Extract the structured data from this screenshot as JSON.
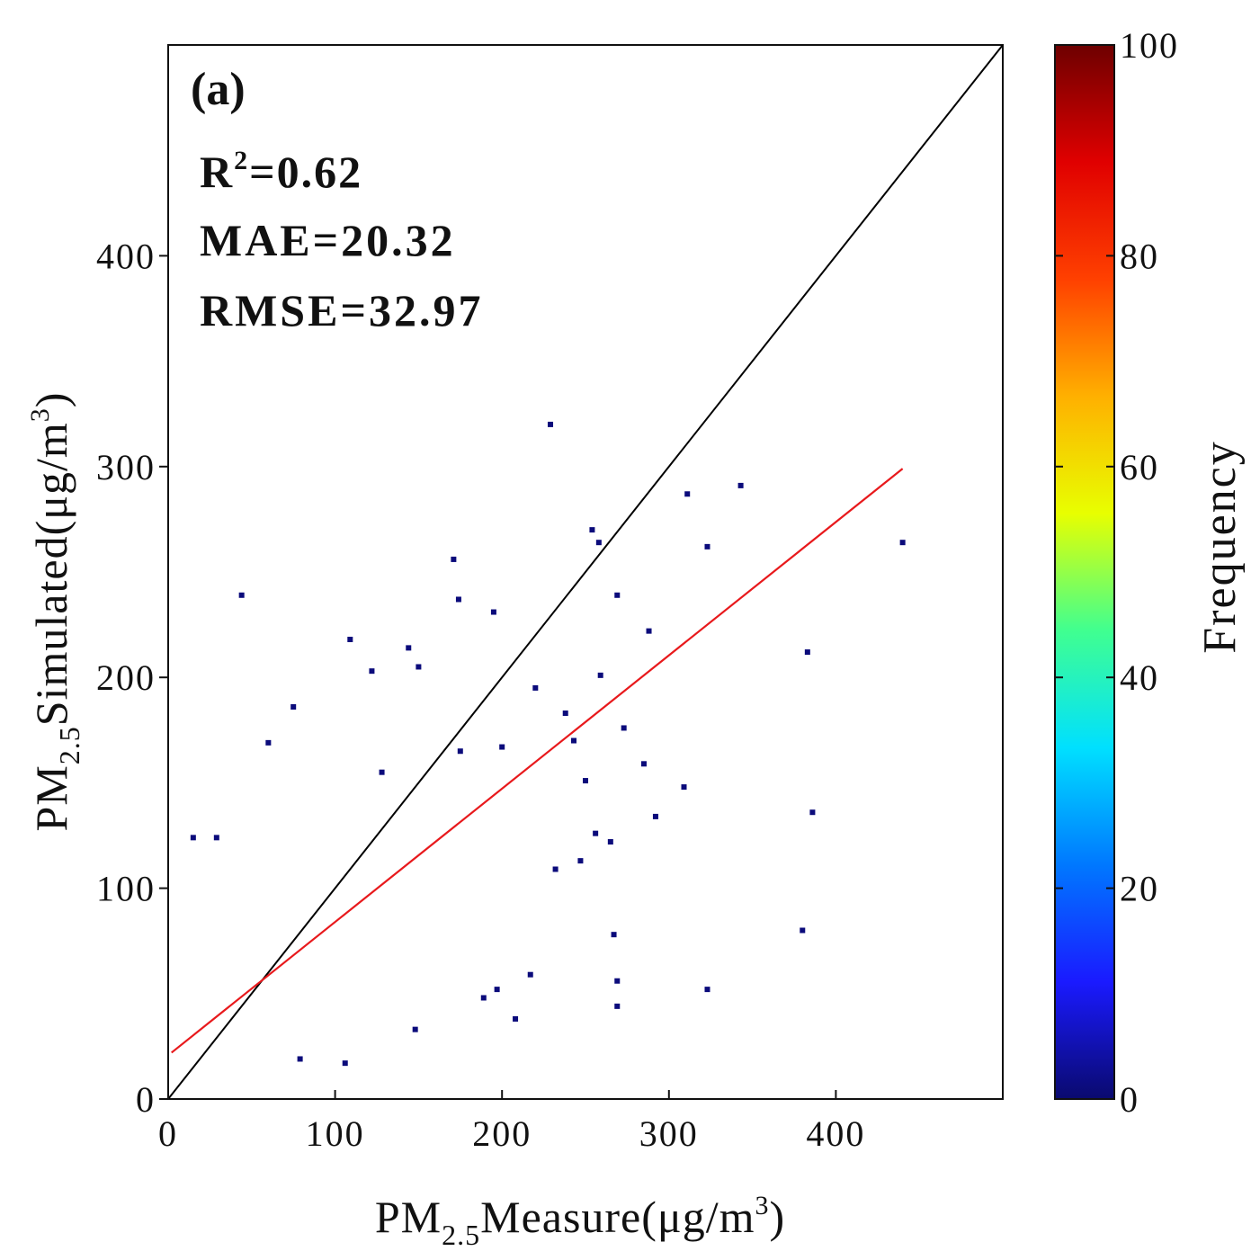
{
  "chart_data": {
    "type": "scatter",
    "subtype": "density-scatter",
    "panel_label": "(a)",
    "stats": {
      "r2_prefix": "R",
      "r2_sup": "2",
      "r2_value": "=0.62",
      "mae": "MAE=20.32",
      "rmse": "RMSE=32.97"
    },
    "xlabel": {
      "main": "PM",
      "sub": "2.5",
      "rest": "Measure(μg/m",
      "sup": "3",
      "close": ")"
    },
    "ylabel": {
      "main": "PM",
      "sub": "2.5",
      "rest": "Simulated(μg/m",
      "sup": "3",
      "close": ")"
    },
    "xlim": [
      0,
      500
    ],
    "ylim": [
      0,
      500
    ],
    "xticks": [
      0,
      100,
      200,
      300,
      400
    ],
    "yticks": [
      0,
      100,
      200,
      300,
      400
    ],
    "one_to_one_line": {
      "x": [
        0,
        500
      ],
      "y": [
        0,
        500
      ],
      "color": "#000000"
    },
    "fit_line": {
      "x": [
        2,
        440
      ],
      "y": [
        22,
        299
      ],
      "color": "#e8191c"
    },
    "colorbar": {
      "label": "Frequency",
      "range": [
        0,
        100
      ],
      "ticks": [
        0,
        20,
        40,
        60,
        80,
        100
      ],
      "colors": [
        "#0a0a6e",
        "#1a1aff",
        "#0078ff",
        "#00e0ff",
        "#40ff90",
        "#e8ff00",
        "#ffb000",
        "#ff4000",
        "#e00000",
        "#6e0000"
      ]
    },
    "points": [
      {
        "x": 229,
        "y": 320,
        "freq": 1
      },
      {
        "x": 311,
        "y": 287,
        "freq": 1
      },
      {
        "x": 343,
        "y": 291,
        "freq": 1
      },
      {
        "x": 440,
        "y": 264,
        "freq": 1
      },
      {
        "x": 323,
        "y": 262,
        "freq": 1
      },
      {
        "x": 254,
        "y": 270,
        "freq": 1
      },
      {
        "x": 258,
        "y": 264,
        "freq": 1
      },
      {
        "x": 171,
        "y": 256,
        "freq": 1
      },
      {
        "x": 44,
        "y": 239,
        "freq": 1
      },
      {
        "x": 174,
        "y": 237,
        "freq": 1
      },
      {
        "x": 195,
        "y": 231,
        "freq": 1
      },
      {
        "x": 269,
        "y": 239,
        "freq": 1
      },
      {
        "x": 288,
        "y": 222,
        "freq": 1
      },
      {
        "x": 383,
        "y": 212,
        "freq": 1
      },
      {
        "x": 109,
        "y": 218,
        "freq": 1
      },
      {
        "x": 144,
        "y": 214,
        "freq": 1
      },
      {
        "x": 259,
        "y": 201,
        "freq": 1
      },
      {
        "x": 150,
        "y": 205,
        "freq": 1
      },
      {
        "x": 122,
        "y": 203,
        "freq": 1
      },
      {
        "x": 60,
        "y": 169,
        "freq": 1
      },
      {
        "x": 75,
        "y": 186,
        "freq": 1
      },
      {
        "x": 273,
        "y": 176,
        "freq": 1
      },
      {
        "x": 250,
        "y": 151,
        "freq": 1
      },
      {
        "x": 309,
        "y": 148,
        "freq": 1
      },
      {
        "x": 285,
        "y": 159,
        "freq": 1
      },
      {
        "x": 292,
        "y": 134,
        "freq": 1
      },
      {
        "x": 386,
        "y": 136,
        "freq": 1
      },
      {
        "x": 256,
        "y": 126,
        "freq": 1
      },
      {
        "x": 265,
        "y": 122,
        "freq": 1
      },
      {
        "x": 247,
        "y": 113,
        "freq": 1
      },
      {
        "x": 232,
        "y": 109,
        "freq": 1
      },
      {
        "x": 380,
        "y": 80,
        "freq": 1
      },
      {
        "x": 267,
        "y": 78,
        "freq": 1
      },
      {
        "x": 269,
        "y": 56,
        "freq": 1
      },
      {
        "x": 323,
        "y": 52,
        "freq": 1
      },
      {
        "x": 269,
        "y": 44,
        "freq": 1
      },
      {
        "x": 217,
        "y": 59,
        "freq": 1
      },
      {
        "x": 208,
        "y": 38,
        "freq": 1
      },
      {
        "x": 197,
        "y": 52,
        "freq": 1
      },
      {
        "x": 189,
        "y": 48,
        "freq": 1
      },
      {
        "x": 148,
        "y": 33,
        "freq": 1
      },
      {
        "x": 106,
        "y": 17,
        "freq": 1
      },
      {
        "x": 79,
        "y": 19,
        "freq": 1
      },
      {
        "x": 29,
        "y": 124,
        "freq": 1
      },
      {
        "x": 15,
        "y": 124,
        "freq": 1
      },
      {
        "x": 200,
        "y": 167,
        "freq": 1
      },
      {
        "x": 175,
        "y": 165,
        "freq": 1
      },
      {
        "x": 128,
        "y": 155,
        "freq": 1
      },
      {
        "x": 238,
        "y": 183,
        "freq": 1
      },
      {
        "x": 243,
        "y": 170,
        "freq": 1
      },
      {
        "x": 220,
        "y": 195,
        "freq": 1
      }
    ]
  }
}
